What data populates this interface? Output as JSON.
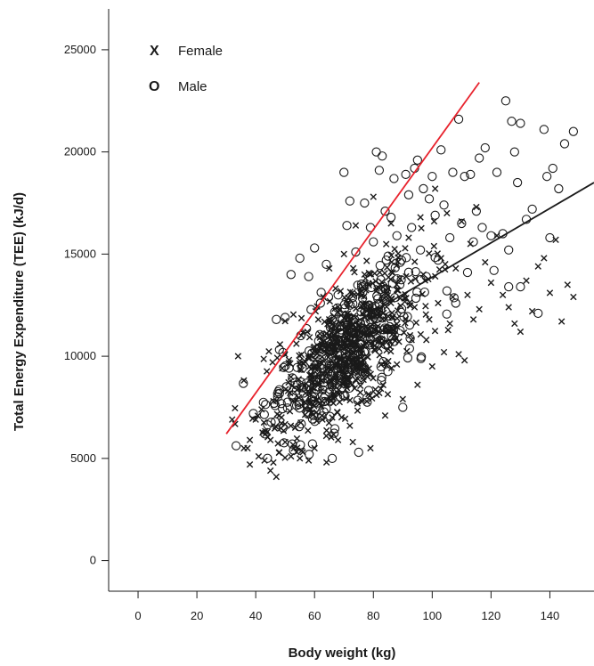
{
  "chart_data": {
    "type": "scatter",
    "xlabel": "Body weight (kg)",
    "ylabel": "Total Energy Expenditure (TEE) (kJ/d)",
    "xlim": [
      -10,
      155
    ],
    "ylim": [
      -1500,
      27000
    ],
    "x_ticks": [
      0,
      20,
      40,
      60,
      80,
      100,
      120,
      140
    ],
    "y_ticks": [
      0,
      5000,
      10000,
      15000,
      20000,
      25000
    ],
    "x_tick_labels": [
      "0",
      "20",
      "40",
      "60",
      "80",
      "100",
      "120",
      "140"
    ],
    "y_tick_labels": [
      "0",
      "5000",
      "10000",
      "15000",
      "20000",
      "25000"
    ],
    "grid": false,
    "legend": {
      "position": "top-left",
      "entries": [
        {
          "symbol": "X",
          "label": "Female"
        },
        {
          "symbol": "O",
          "label": "Male"
        }
      ]
    },
    "series": [
      {
        "name": "Female",
        "marker": "x",
        "color": "#1a1a1a",
        "points": [
          [
            32,
            6900
          ],
          [
            34,
            10000
          ],
          [
            36,
            5500
          ],
          [
            38,
            5900
          ],
          [
            38,
            4700
          ],
          [
            40,
            6900
          ],
          [
            41,
            5100
          ],
          [
            42,
            7400
          ],
          [
            43,
            4900
          ],
          [
            44,
            6300
          ],
          [
            45,
            5900
          ],
          [
            45,
            4400
          ],
          [
            46,
            7800
          ],
          [
            46,
            4800
          ],
          [
            47,
            4100
          ],
          [
            48,
            7100
          ],
          [
            48,
            5300
          ],
          [
            50,
            5800
          ],
          [
            51,
            8300
          ],
          [
            52,
            5100
          ],
          [
            53,
            5500
          ],
          [
            55,
            5000
          ],
          [
            56,
            5300
          ],
          [
            57,
            7700
          ],
          [
            58,
            4900
          ],
          [
            59,
            8900
          ],
          [
            60,
            5500
          ],
          [
            62,
            9700
          ],
          [
            63,
            12900
          ],
          [
            64,
            6100
          ],
          [
            65,
            14300
          ],
          [
            66,
            7000
          ],
          [
            67,
            10300
          ],
          [
            68,
            5900
          ],
          [
            69,
            12000
          ],
          [
            70,
            15000
          ],
          [
            71,
            8600
          ],
          [
            72,
            6600
          ],
          [
            73,
            5800
          ],
          [
            74,
            16400
          ],
          [
            75,
            11200
          ],
          [
            76,
            7800
          ],
          [
            77,
            14000
          ],
          [
            78,
            9000
          ],
          [
            79,
            5500
          ],
          [
            80,
            17800
          ],
          [
            81,
            13200
          ],
          [
            82,
            8200
          ],
          [
            84,
            7100
          ],
          [
            86,
            16500
          ],
          [
            87,
            11500
          ],
          [
            88,
            9600
          ],
          [
            89,
            13800
          ],
          [
            90,
            7900
          ],
          [
            92,
            15800
          ],
          [
            93,
            10800
          ],
          [
            94,
            12400
          ],
          [
            95,
            8600
          ],
          [
            96,
            16800
          ],
          [
            97,
            14000
          ],
          [
            98,
            10800
          ],
          [
            99,
            11800
          ],
          [
            100,
            9500
          ],
          [
            101,
            18200
          ],
          [
            102,
            12600
          ],
          [
            103,
            14800
          ],
          [
            104,
            10200
          ],
          [
            105,
            17000
          ],
          [
            106,
            11600
          ],
          [
            107,
            12900
          ],
          [
            108,
            14300
          ],
          [
            109,
            10100
          ],
          [
            110,
            16600
          ],
          [
            111,
            9800
          ],
          [
            112,
            13000
          ],
          [
            113,
            15500
          ],
          [
            114,
            11800
          ],
          [
            115,
            17300
          ],
          [
            116,
            12300
          ],
          [
            118,
            14600
          ],
          [
            120,
            13600
          ],
          [
            122,
            15900
          ],
          [
            124,
            13000
          ],
          [
            126,
            12400
          ],
          [
            128,
            11600
          ],
          [
            130,
            11200
          ],
          [
            132,
            13700
          ],
          [
            134,
            12200
          ],
          [
            136,
            14400
          ],
          [
            138,
            14800
          ],
          [
            140,
            13100
          ],
          [
            142,
            15700
          ],
          [
            144,
            11700
          ],
          [
            146,
            13500
          ],
          [
            148,
            12900
          ]
        ]
      },
      {
        "name": "Male",
        "marker": "o",
        "color": "#1a1a1a",
        "points": [
          [
            47,
            11800
          ],
          [
            50,
            11900
          ],
          [
            52,
            14000
          ],
          [
            55,
            14800
          ],
          [
            58,
            13900
          ],
          [
            60,
            15300
          ],
          [
            62,
            12600
          ],
          [
            64,
            14500
          ],
          [
            66,
            5000
          ],
          [
            68,
            13000
          ],
          [
            70,
            19000
          ],
          [
            71,
            16400
          ],
          [
            72,
            17600
          ],
          [
            74,
            15100
          ],
          [
            75,
            5300
          ],
          [
            76,
            13400
          ],
          [
            77,
            17500
          ],
          [
            78,
            12200
          ],
          [
            79,
            16300
          ],
          [
            80,
            15600
          ],
          [
            81,
            20000
          ],
          [
            82,
            19100
          ],
          [
            83,
            19800
          ],
          [
            84,
            17100
          ],
          [
            85,
            14900
          ],
          [
            86,
            16800
          ],
          [
            87,
            18700
          ],
          [
            88,
            15900
          ],
          [
            89,
            13500
          ],
          [
            90,
            7500
          ],
          [
            91,
            18900
          ],
          [
            92,
            17900
          ],
          [
            93,
            16300
          ],
          [
            94,
            19200
          ],
          [
            95,
            19600
          ],
          [
            96,
            15200
          ],
          [
            97,
            18200
          ],
          [
            98,
            13900
          ],
          [
            99,
            17700
          ],
          [
            100,
            18800
          ],
          [
            101,
            16900
          ],
          [
            102,
            14700
          ],
          [
            103,
            20100
          ],
          [
            104,
            17400
          ],
          [
            105,
            13200
          ],
          [
            106,
            15800
          ],
          [
            107,
            19000
          ],
          [
            108,
            12600
          ],
          [
            109,
            21600
          ],
          [
            110,
            16500
          ],
          [
            111,
            18800
          ],
          [
            112,
            14100
          ],
          [
            113,
            18900
          ],
          [
            114,
            15600
          ],
          [
            115,
            17100
          ],
          [
            116,
            19700
          ],
          [
            117,
            16300
          ],
          [
            118,
            20200
          ],
          [
            120,
            15900
          ],
          [
            121,
            14200
          ],
          [
            122,
            19000
          ],
          [
            124,
            16000
          ],
          [
            125,
            22500
          ],
          [
            126,
            13400
          ],
          [
            127,
            21500
          ],
          [
            128,
            20000
          ],
          [
            129,
            18500
          ],
          [
            130,
            21400
          ],
          [
            132,
            16700
          ],
          [
            134,
            17200
          ],
          [
            136,
            12100
          ],
          [
            138,
            21100
          ],
          [
            139,
            18800
          ],
          [
            140,
            15800
          ],
          [
            141,
            19200
          ],
          [
            143,
            18200
          ],
          [
            145,
            20400
          ],
          [
            148,
            21000
          ],
          [
            130,
            13400
          ],
          [
            126,
            15200
          ]
        ]
      }
    ],
    "dense_cloud": {
      "center_x": 70,
      "center_y": 10200,
      "count": 900
    },
    "lines": [
      {
        "name": "fit",
        "color": "#1a1a1a",
        "x": [
          60,
          155
        ],
        "y": [
          10500,
          18500
        ]
      },
      {
        "name": "reference",
        "color": "#e8232d",
        "x": [
          30,
          116
        ],
        "y": [
          6200,
          23400
        ]
      }
    ]
  }
}
